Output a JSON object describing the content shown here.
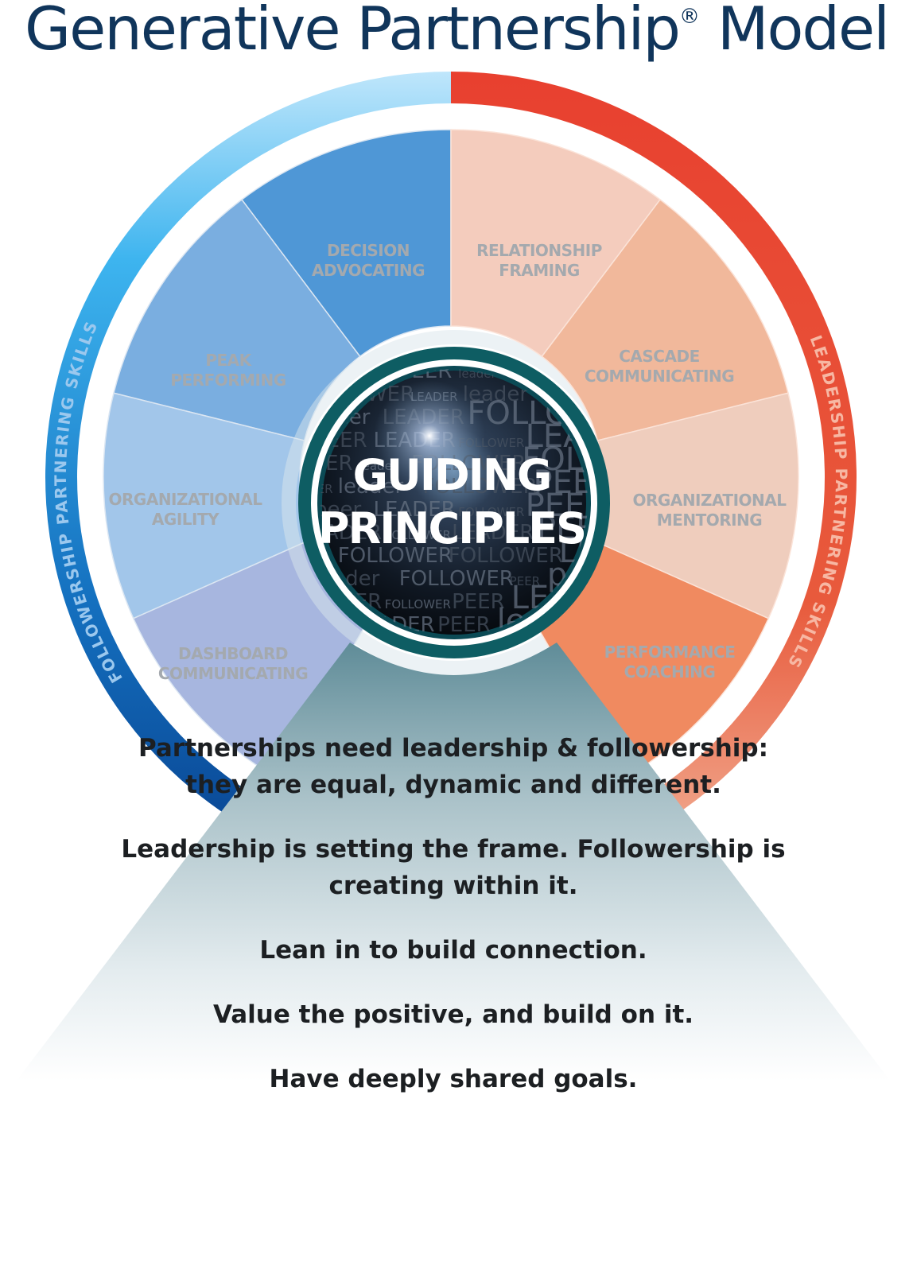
{
  "title": {
    "main": "Generative Partnership",
    "mark": "®",
    "suffix": "Model"
  },
  "center": {
    "line1": "GUIDING",
    "line2": "PRINCIPLES",
    "word_pattern": [
      "LEADER",
      "PEER",
      "leader",
      "FOLLOWER",
      "FOLLOWER",
      "LEADER",
      "leader",
      "FOLLOWER",
      "PEER",
      "peer",
      "LEADER",
      "FOLLOWER",
      "PEER",
      "LEADER",
      "FOLLOWER"
    ]
  },
  "followership": {
    "arc_label": "FOLLOWERSHIP PARTNERING SKILLS",
    "segments": [
      {
        "line1": "DECISION",
        "line2": "ADVOCATING"
      },
      {
        "line1": "PEAK",
        "line2": "PERFORMING"
      },
      {
        "line1": "ORGANIZATIONAL",
        "line2": "AGILITY"
      },
      {
        "line1": "DASHBOARD",
        "line2": "COMMUNICATING"
      }
    ]
  },
  "leadership": {
    "arc_label": "LEADERSHIP PARTNERING SKILLS",
    "segments": [
      {
        "line1": "RELATIONSHIP",
        "line2": "FRAMING"
      },
      {
        "line1": "CASCADE",
        "line2": "COMMUNICATING"
      },
      {
        "line1": "ORGANIZATIONAL",
        "line2": "MENTORING"
      },
      {
        "line1": "PERFORMANCE",
        "line2": "COACHING"
      }
    ]
  },
  "principles": [
    {
      "lines": [
        "Partnerships need",
        "leadership & followership:",
        "they are equal,",
        "dynamic and different."
      ]
    },
    {
      "lines": [
        "Leadership is setting the frame.",
        "Followership is creating within it."
      ]
    },
    {
      "lines": [
        "Lean in to build connection."
      ]
    },
    {
      "lines": [
        "Value the positive, and build on it."
      ]
    },
    {
      "lines": [
        "Have deeply shared goals."
      ]
    }
  ],
  "colors": {
    "title": "#10355b",
    "follower_ring_light": "#3fb6ee",
    "follower_ring_dark": "#0a4f9a",
    "leader_ring": "#e8402f",
    "center_ring": "#0e5d63",
    "segment_text": "#a4a9ae",
    "principle_text": "#1c1f22"
  }
}
